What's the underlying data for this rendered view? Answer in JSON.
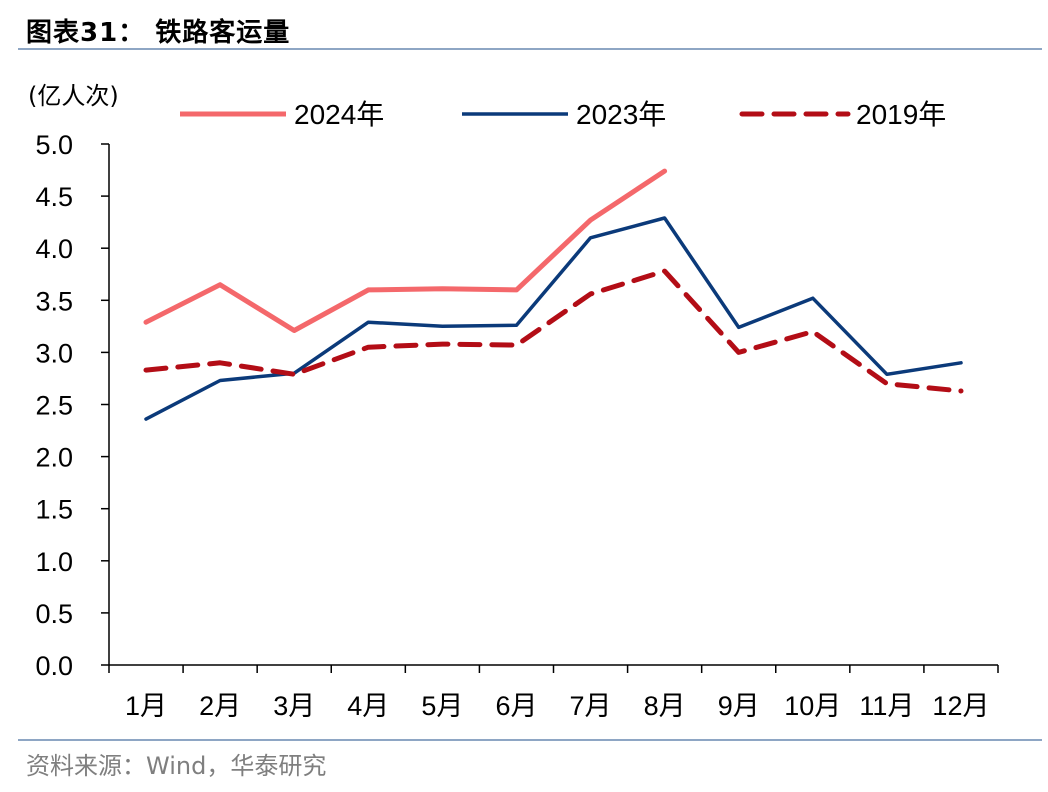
{
  "header": {
    "title": "图表31：  铁路客运量"
  },
  "footer": {
    "source": "资料来源：Wind，华泰研究"
  },
  "chart_data": {
    "type": "line",
    "ylabel": "(亿人次)",
    "ylim": [
      0,
      5
    ],
    "ytick_labels": [
      "0.0",
      "0.5",
      "1.0",
      "1.5",
      "2.0",
      "2.5",
      "3.0",
      "3.5",
      "4.0",
      "4.5",
      "5.0"
    ],
    "categories": [
      "1月",
      "2月",
      "3月",
      "4月",
      "5月",
      "6月",
      "7月",
      "8月",
      "9月",
      "10月",
      "11月",
      "12月"
    ],
    "legend_position": "top",
    "grid": false,
    "series": [
      {
        "name": "2024年",
        "color": "#f4686b",
        "style": "solid",
        "values": [
          3.29,
          3.65,
          3.21,
          3.6,
          3.61,
          3.6,
          4.27,
          4.74,
          null,
          null,
          null,
          null
        ]
      },
      {
        "name": "2023年",
        "color": "#0b3a7a",
        "style": "solid",
        "values": [
          2.36,
          2.73,
          2.8,
          3.29,
          3.25,
          3.26,
          4.1,
          4.29,
          3.24,
          3.52,
          2.79,
          2.9
        ]
      },
      {
        "name": "2019年",
        "color": "#b30d16",
        "style": "dashed",
        "values": [
          2.83,
          2.9,
          2.79,
          3.05,
          3.08,
          3.07,
          3.56,
          3.78,
          3.0,
          3.2,
          2.7,
          2.63
        ]
      }
    ]
  }
}
